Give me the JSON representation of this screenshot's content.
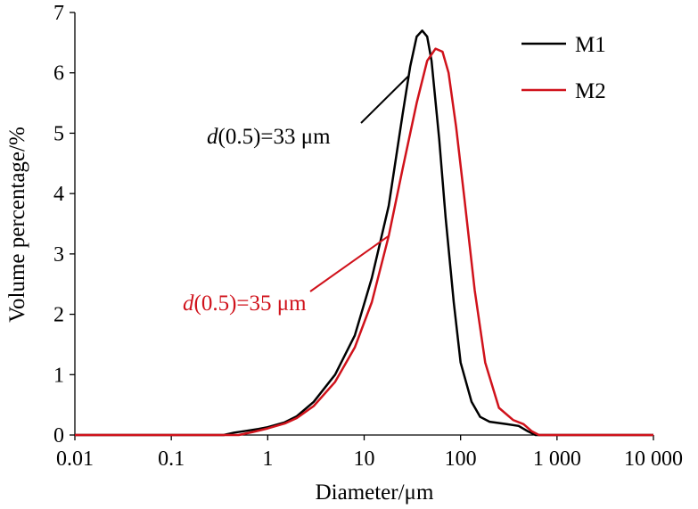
{
  "chart_data": {
    "type": "line",
    "title": "",
    "xlabel": "Diameter/μm",
    "ylabel": "Volume percentage/%",
    "x_scale": "log",
    "xlim": [
      0.01,
      10000
    ],
    "ylim": [
      0,
      7
    ],
    "x_ticks": [
      0.01,
      0.1,
      1,
      10,
      100,
      1000,
      10000
    ],
    "x_tick_labels": [
      "0.01",
      "0.1",
      "1",
      "10",
      "100",
      "1 000",
      "10 000"
    ],
    "y_ticks": [
      0,
      1,
      2,
      3,
      4,
      5,
      6,
      7
    ],
    "y_tick_labels": [
      "0",
      "1",
      "2",
      "3",
      "4",
      "5",
      "6",
      "7"
    ],
    "grid": false,
    "legend_position": "top-right",
    "series": [
      {
        "name": "M1",
        "color": "#000000",
        "x": [
          0.01,
          0.35,
          0.45,
          0.6,
          0.8,
          1,
          1.5,
          2,
          3,
          5,
          8,
          12,
          18,
          25,
          30,
          35,
          40,
          45,
          50,
          60,
          70,
          85,
          100,
          130,
          160,
          200,
          300,
          400,
          500,
          600,
          10000
        ],
        "y": [
          0,
          0,
          0.04,
          0.07,
          0.1,
          0.13,
          0.21,
          0.31,
          0.55,
          1.0,
          1.65,
          2.6,
          3.8,
          5.3,
          6.1,
          6.6,
          6.7,
          6.6,
          6.2,
          4.9,
          3.6,
          2.2,
          1.2,
          0.55,
          0.3,
          0.22,
          0.18,
          0.15,
          0.06,
          0,
          0
        ]
      },
      {
        "name": "M2",
        "color": "#d0121b",
        "x": [
          0.01,
          0.5,
          0.7,
          1,
          1.5,
          2,
          3,
          5,
          8,
          12,
          18,
          25,
          35,
          45,
          55,
          65,
          75,
          90,
          110,
          140,
          180,
          250,
          350,
          450,
          550,
          650,
          10000
        ],
        "y": [
          0,
          0,
          0.05,
          0.11,
          0.19,
          0.28,
          0.48,
          0.88,
          1.45,
          2.2,
          3.3,
          4.4,
          5.5,
          6.2,
          6.4,
          6.35,
          6.0,
          5.1,
          3.9,
          2.4,
          1.2,
          0.45,
          0.25,
          0.18,
          0.06,
          0,
          0
        ]
      }
    ],
    "annotations": [
      {
        "text_italic": "d",
        "text_rest": "(0.5)=33 μm",
        "color": "#000000",
        "x": 33
      },
      {
        "text_italic": "d",
        "text_rest": "(0.5)=35 μm",
        "color": "#d0121b",
        "x": 35
      }
    ]
  }
}
